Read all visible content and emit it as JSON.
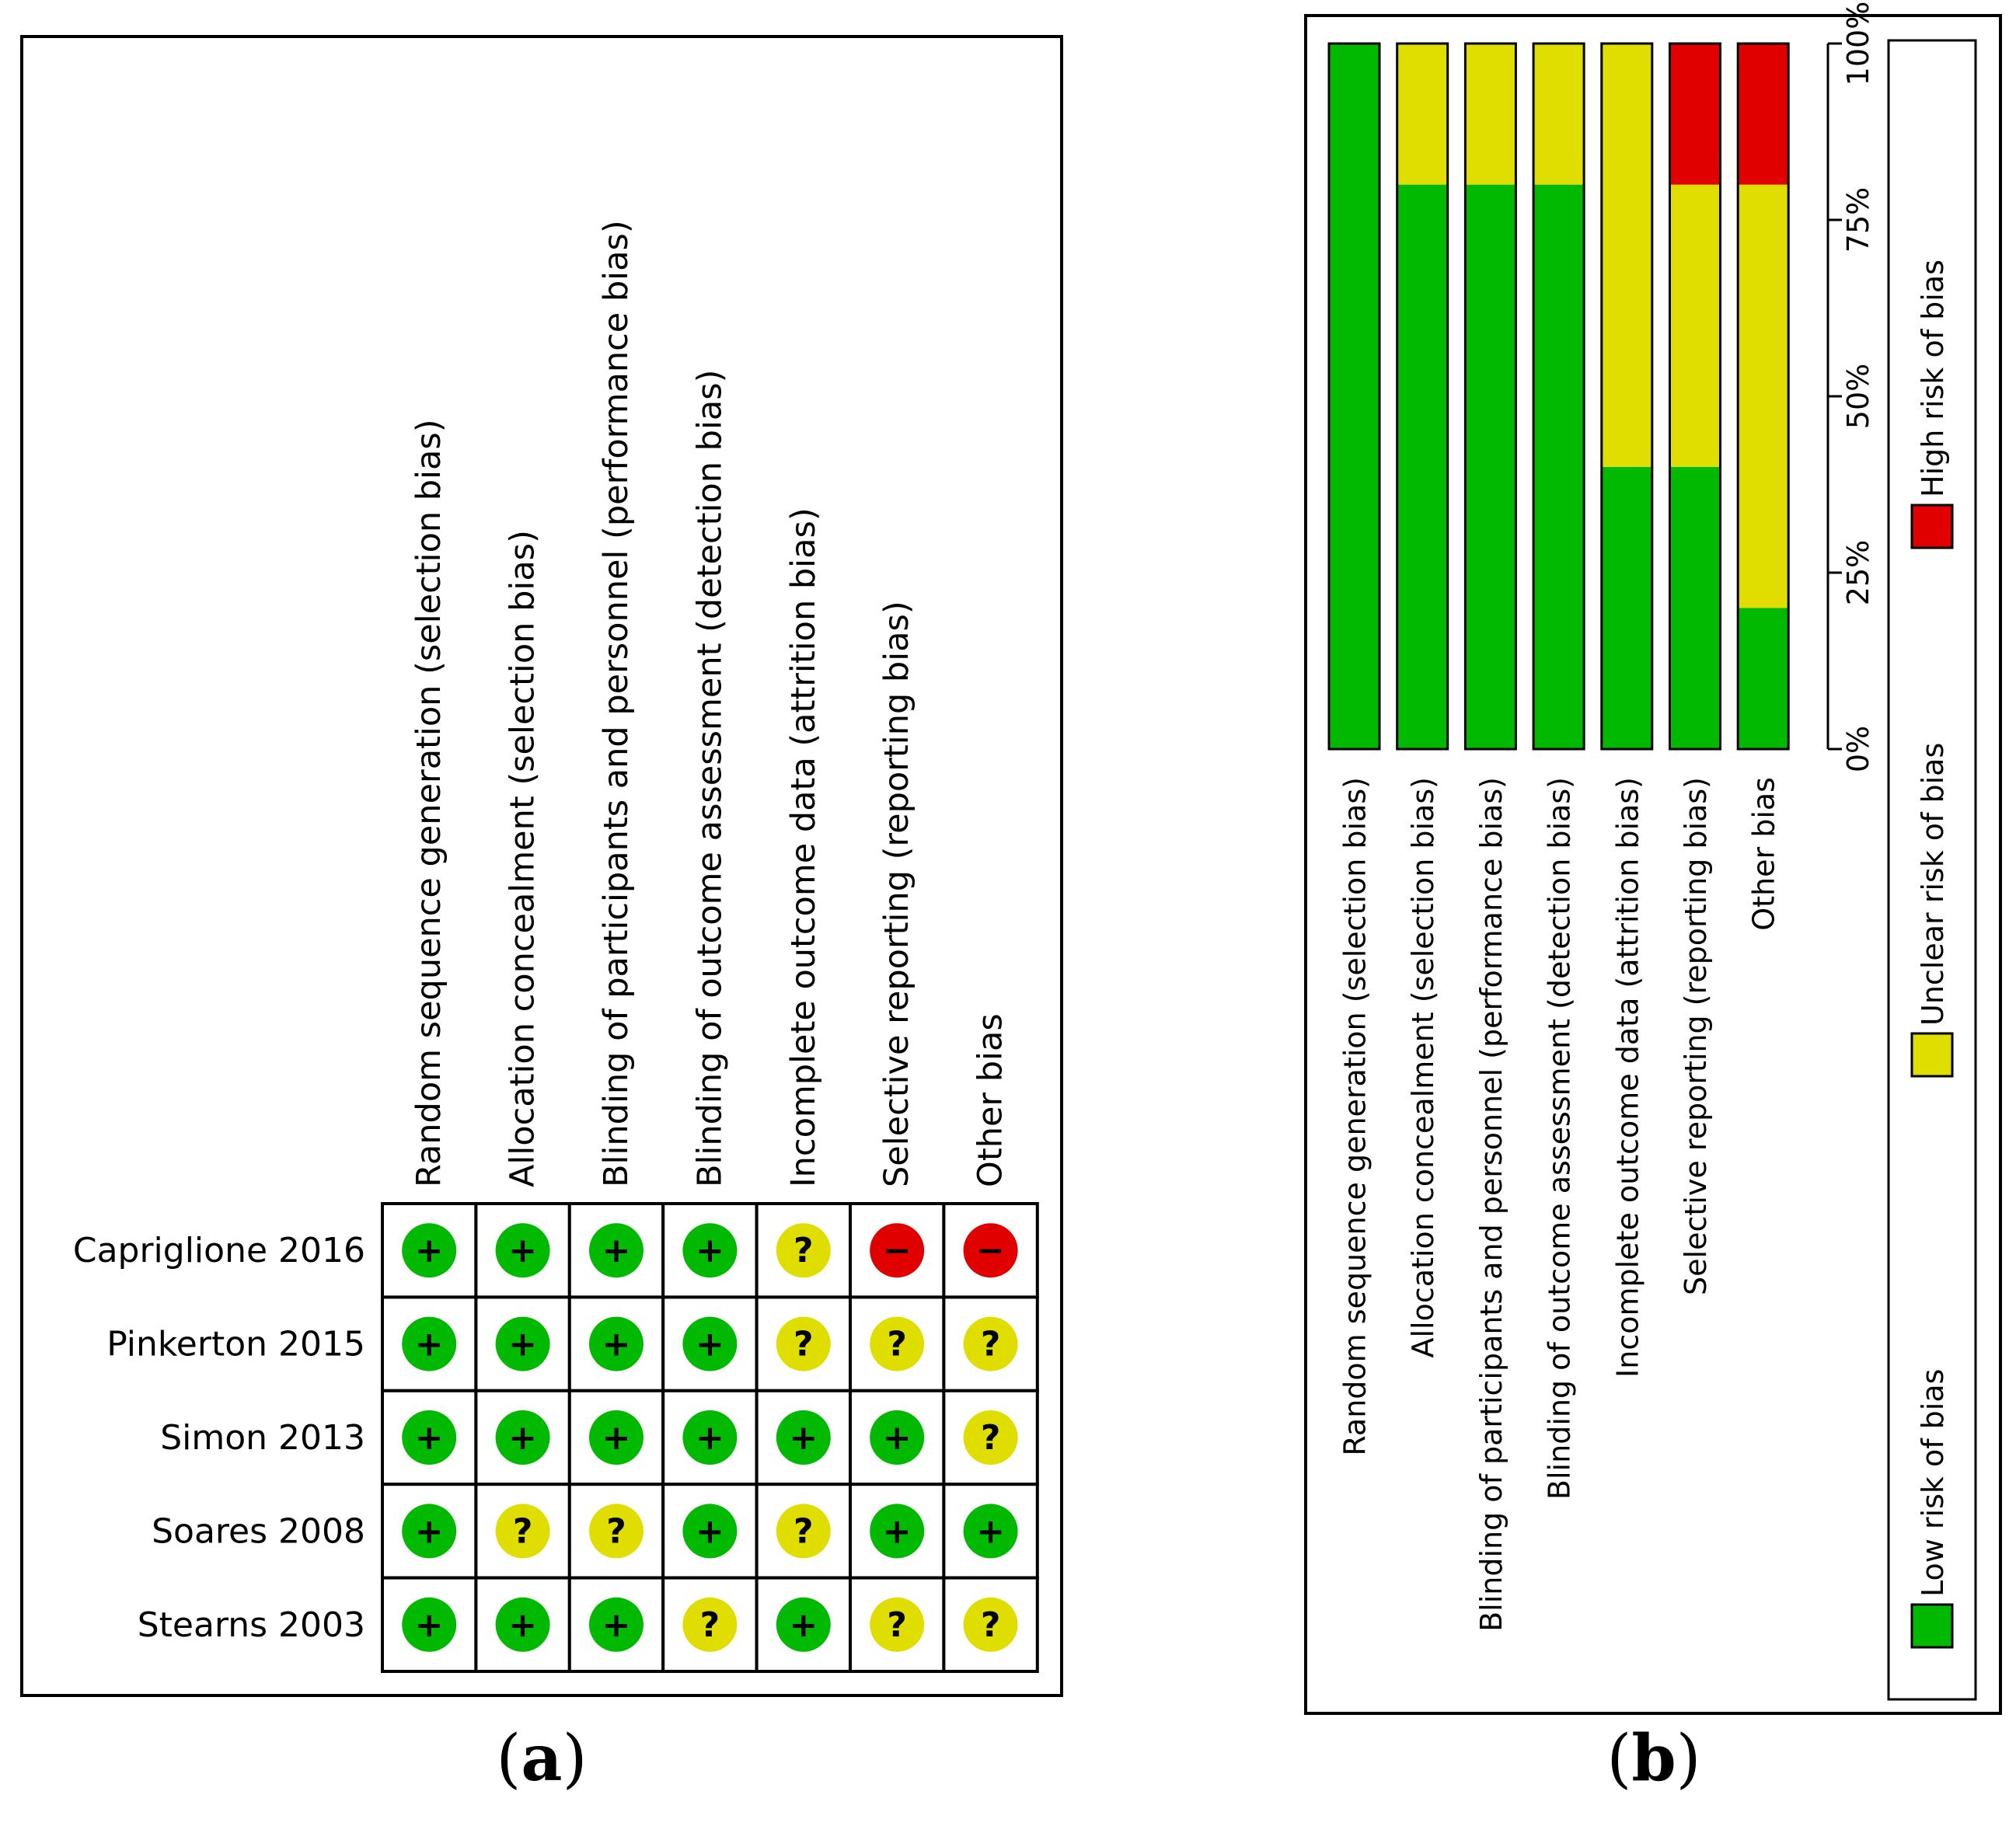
{
  "colors": {
    "low": "#00b900",
    "unclear": "#e0de00",
    "high": "#e00000",
    "border": "#000000"
  },
  "chart_data": [
    {
      "type": "table",
      "panel": "a",
      "caption_label": "a",
      "domains": [
        "Random sequence generation (selection bias)",
        "Allocation concealment (selection bias)",
        "Blinding of participants and personnel (performance bias)",
        "Blinding of outcome assessment (detection bias)",
        "Incomplete outcome data (attrition bias)",
        "Selective reporting (reporting bias)",
        "Other bias"
      ],
      "studies": [
        {
          "name": "Capriglione 2016",
          "judgements": [
            "+",
            "+",
            "+",
            "+",
            "?",
            "−",
            "−"
          ]
        },
        {
          "name": "Pinkerton 2015",
          "judgements": [
            "+",
            "+",
            "+",
            "+",
            "?",
            "?",
            "?"
          ]
        },
        {
          "name": "Simon 2013",
          "judgements": [
            "+",
            "+",
            "+",
            "+",
            "+",
            "+",
            "?"
          ]
        },
        {
          "name": "Soares 2008",
          "judgements": [
            "+",
            "?",
            "?",
            "+",
            "?",
            "+",
            "+"
          ]
        },
        {
          "name": "Stearns 2003",
          "judgements": [
            "+",
            "+",
            "+",
            "?",
            "+",
            "?",
            "?"
          ]
        }
      ],
      "symbol_levels": {
        "+": "low",
        "?": "unclear",
        "−": "high"
      }
    },
    {
      "type": "bar",
      "stacked": true,
      "orientation": "rotated",
      "panel": "b",
      "caption_label": "b",
      "categories": [
        "Random sequence generation (selection bias)",
        "Allocation concealment (selection bias)",
        "Blinding of participants and personnel (performance bias)",
        "Blinding of outcome assessment (detection bias)",
        "Incomplete outcome data (attrition bias)",
        "Selective reporting (reporting bias)",
        "Other bias"
      ],
      "series": [
        {
          "name": "Low risk of bias",
          "level": "low",
          "values": [
            100,
            80,
            80,
            80,
            40,
            40,
            20
          ]
        },
        {
          "name": "Unclear risk of bias",
          "level": "unclear",
          "values": [
            0,
            20,
            20,
            20,
            60,
            40,
            60
          ]
        },
        {
          "name": "High risk of bias",
          "level": "high",
          "values": [
            0,
            0,
            0,
            0,
            0,
            20,
            20
          ]
        }
      ],
      "axis_ticks": [
        "0%",
        "25%",
        "50%",
        "75%",
        "100%"
      ],
      "axis_range": [
        0,
        100
      ],
      "legend_position": "bottom"
    }
  ]
}
